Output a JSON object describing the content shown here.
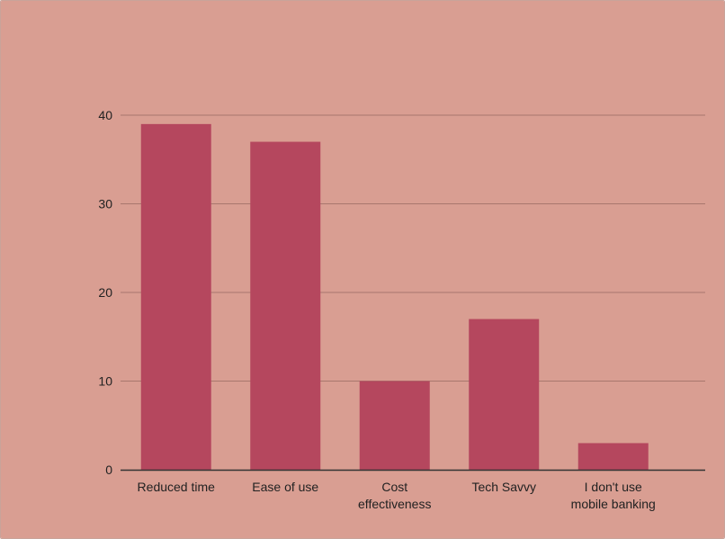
{
  "chart_data": {
    "type": "bar",
    "title": "",
    "xlabel": "",
    "ylabel": "",
    "categories": [
      [
        "Reduced time"
      ],
      [
        "Ease of use"
      ],
      [
        "Cost",
        "effectiveness"
      ],
      [
        "Tech Savvy"
      ],
      [
        "I don't use",
        "mobile banking"
      ]
    ],
    "values": [
      39,
      37,
      10,
      17,
      3
    ],
    "ylim": [
      0,
      40
    ],
    "yticks": [
      "0",
      "10",
      "20",
      "30",
      "40"
    ],
    "grid": true,
    "legend": "none",
    "colors": {
      "background": "#d99e92",
      "bar": "#b5475e",
      "gridline": "#a8776e",
      "axis": "#333333",
      "text": "#222222"
    }
  }
}
